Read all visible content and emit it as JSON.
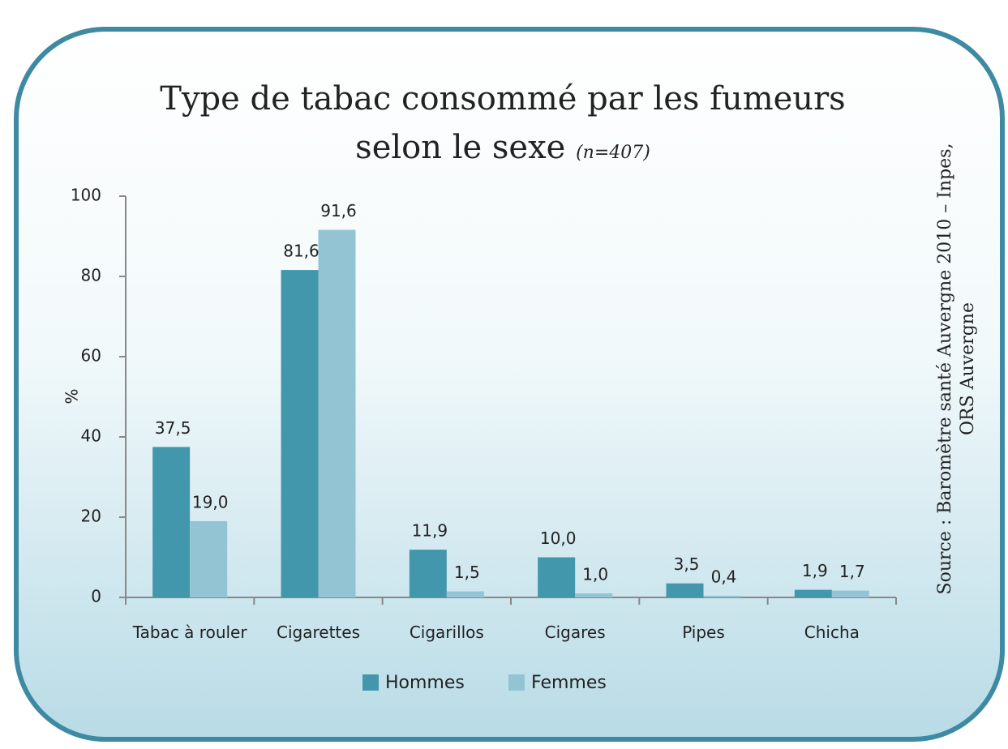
{
  "chart_data": {
    "type": "bar",
    "title": "Type de tabac consommé par les fumeurs selon le sexe",
    "subtitle": "(n=407)",
    "y_label": "%",
    "source": "Source : Baromètre santé Auvergne 2010 – Inpes, ORS Auvergne",
    "categories": [
      "Tabac à rouler",
      "Cigarettes",
      "Cigarillos",
      "Cigares",
      "Pipes",
      "Chicha"
    ],
    "series": [
      {
        "name": "Hommes",
        "color": "#4397ad",
        "values": [
          37.5,
          81.6,
          11.9,
          10.0,
          3.5,
          1.9
        ],
        "value_labels": [
          "37,5",
          "81,6",
          "11,9",
          "10,0",
          "3,5",
          "1,9"
        ]
      },
      {
        "name": "Femmes",
        "color": "#93c4d4",
        "values": [
          19.0,
          91.6,
          1.5,
          1.0,
          0.4,
          1.7
        ],
        "value_labels": [
          "19,0",
          "91,6",
          "1,5",
          "1,0",
          "0,4",
          "1,7"
        ]
      }
    ],
    "ylim": [
      0,
      100
    ],
    "yticks": [
      0,
      20,
      40,
      60,
      80,
      100
    ],
    "legend": "bottom"
  }
}
